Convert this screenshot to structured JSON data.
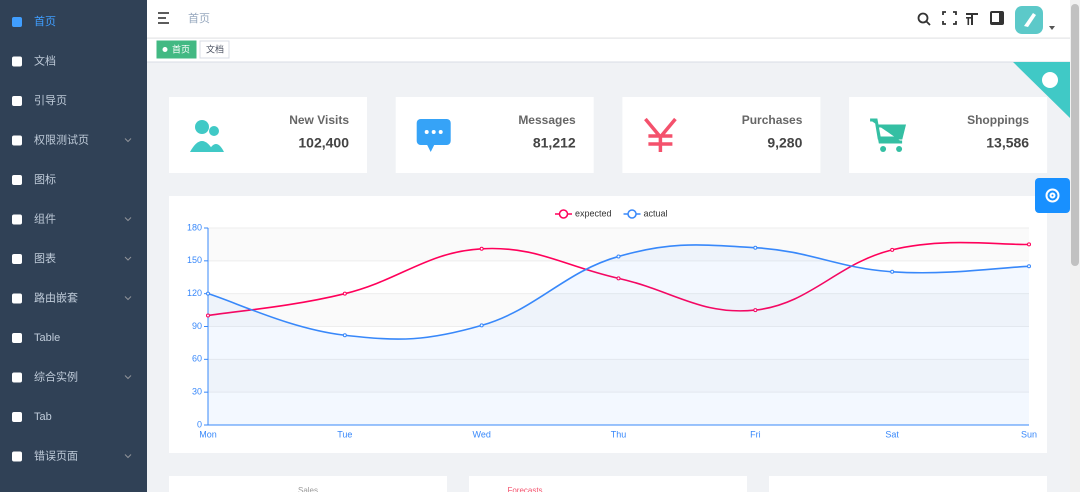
{
  "sidebar": {
    "active": 0,
    "items": [
      {
        "label": "首页",
        "submenu": false
      },
      {
        "label": "文档",
        "submenu": false
      },
      {
        "label": "引导页",
        "submenu": false
      },
      {
        "label": "权限测试页",
        "submenu": true
      },
      {
        "label": "图标",
        "submenu": false
      },
      {
        "label": "组件",
        "submenu": true
      },
      {
        "label": "图表",
        "submenu": true
      },
      {
        "label": "路由嵌套",
        "submenu": true
      },
      {
        "label": "Table",
        "submenu": false
      },
      {
        "label": "综合实例",
        "submenu": true
      },
      {
        "label": "Tab",
        "submenu": false
      },
      {
        "label": "错误页面",
        "submenu": true
      }
    ]
  },
  "header": {
    "breadcrumb": "首页"
  },
  "tags": [
    {
      "label": "首页",
      "active": true
    },
    {
      "label": "文档",
      "active": false
    }
  ],
  "cards": [
    {
      "label": "New Visits",
      "value": "102,400"
    },
    {
      "label": "Messages",
      "value": "81,212"
    },
    {
      "label": "Purchases",
      "value": "9,280"
    },
    {
      "label": "Shoppings",
      "value": "13,586"
    }
  ],
  "chart_data": {
    "type": "line",
    "categories": [
      "Mon",
      "Tue",
      "Wed",
      "Thu",
      "Fri",
      "Sat",
      "Sun"
    ],
    "series": [
      {
        "name": "expected",
        "color": "#ff005a",
        "values": [
          100,
          120,
          161,
          134,
          105,
          160,
          165
        ]
      },
      {
        "name": "actual",
        "color": "#3888fa",
        "values": [
          120,
          82,
          91,
          154,
          162,
          140,
          145
        ],
        "area": true
      }
    ],
    "ylim": [
      0,
      180
    ],
    "yticks": [
      0,
      30,
      60,
      90,
      120,
      150,
      180
    ],
    "smooth": true,
    "legend": "top"
  },
  "panels": [
    {
      "title": "Sales"
    },
    {
      "title": "Forecasts"
    }
  ]
}
